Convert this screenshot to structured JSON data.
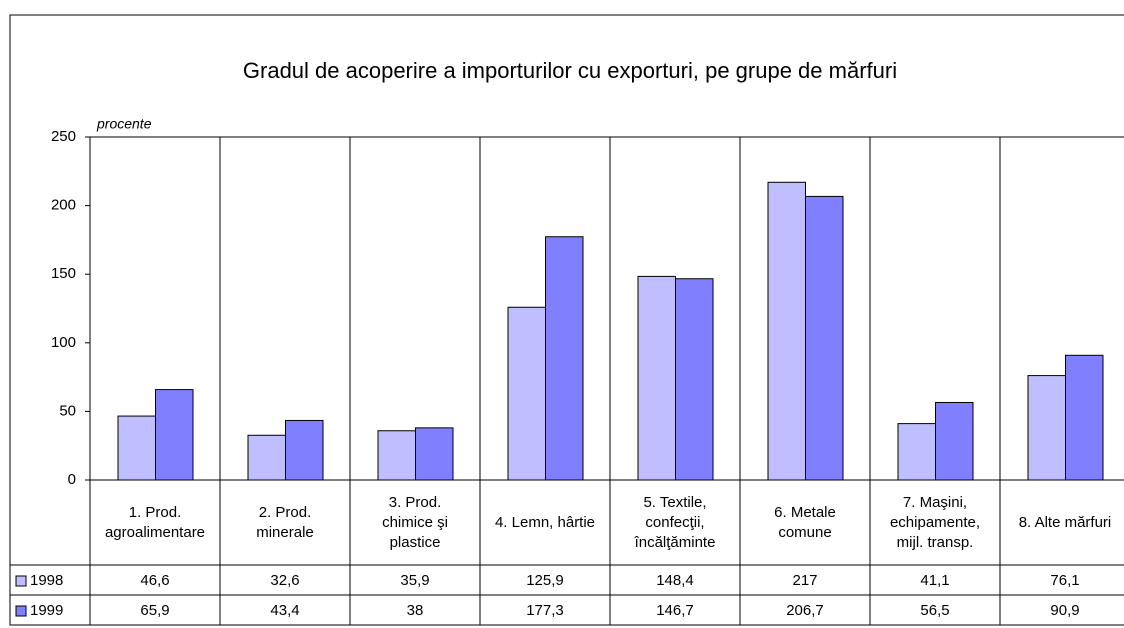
{
  "chart_data": {
    "type": "bar",
    "title": "Gradul de acoperire a importurilor cu exporturi, pe grupe de mărfuri",
    "y_label": "procente",
    "categories": [
      "1. Prod. agroalimentare",
      "2. Prod. minerale",
      "3. Prod. chimice şi plastice",
      "4. Lemn, hârtie",
      "5. Textile, confecţii, încălţăminte",
      "6. Metale comune",
      "7. Maşini, echipamente, mijl. transp.",
      "8. Alte mărfuri"
    ],
    "series": [
      {
        "name": "1998",
        "color": "#bfbfff",
        "values": [
          46.6,
          32.6,
          35.9,
          125.9,
          148.4,
          217,
          41.1,
          76.1
        ],
        "value_labels": [
          "46,6",
          "32,6",
          "35,9",
          "125,9",
          "148,4",
          "217",
          "41,1",
          "76,1"
        ]
      },
      {
        "name": "1999",
        "color": "#8080ff",
        "values": [
          65.9,
          43.4,
          38,
          177.3,
          146.7,
          206.7,
          56.5,
          90.9
        ],
        "value_labels": [
          "65,9",
          "43,4",
          "38",
          "177,3",
          "146,7",
          "206,7",
          "56,5",
          "90,9"
        ]
      }
    ],
    "ylim": [
      0,
      250
    ],
    "yticks": [
      0,
      50,
      100,
      150,
      200,
      250
    ]
  }
}
